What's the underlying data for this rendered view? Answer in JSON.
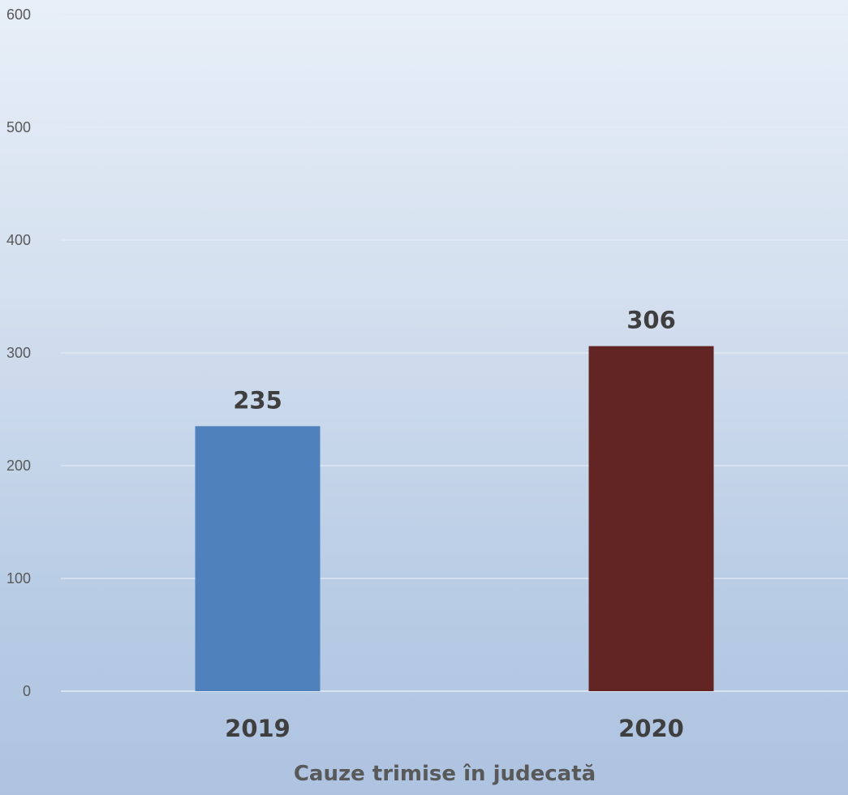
{
  "chart_data": {
    "type": "bar",
    "categories": [
      "2019",
      "2020"
    ],
    "values": [
      235,
      306
    ],
    "data_labels": [
      "235",
      "306"
    ],
    "colors": [
      "#4f81bd",
      "#632523"
    ],
    "xlabel": "Cauze trimise în judecată",
    "ylabel": "",
    "ylim": [
      0,
      600
    ],
    "yticks": [
      0,
      100,
      200,
      300,
      400,
      500,
      600
    ],
    "ytick_labels": [
      "0",
      "100",
      "200",
      "300",
      "400",
      "500",
      "600"
    ],
    "grid": true,
    "legend": "none"
  }
}
